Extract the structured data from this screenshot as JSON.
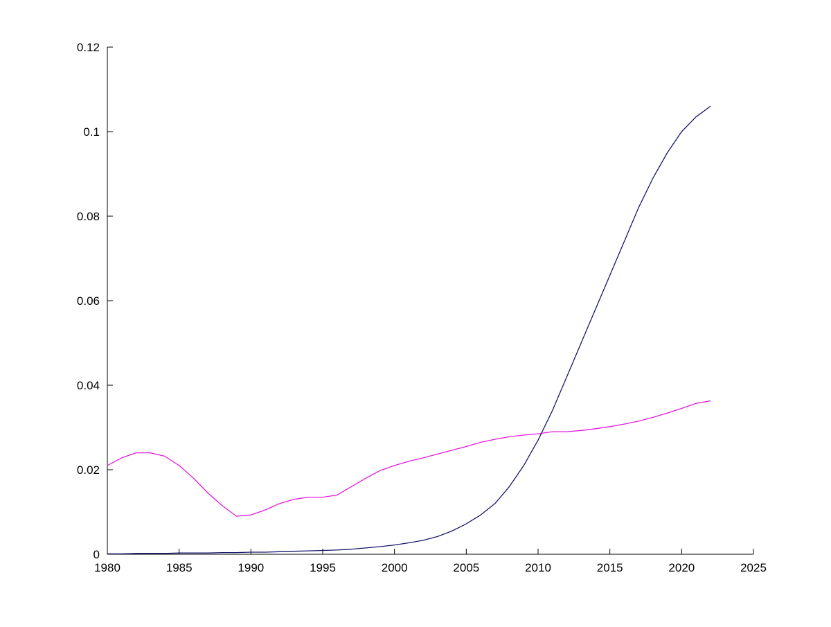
{
  "chart_data": {
    "type": "line",
    "title": "",
    "xlabel": "",
    "ylabel": "",
    "xlim": [
      1980,
      2025
    ],
    "ylim": [
      0,
      0.12
    ],
    "x_ticks": [
      1980,
      1985,
      1990,
      1995,
      2000,
      2005,
      2010,
      2015,
      2020,
      2025
    ],
    "x_tick_labels": [
      "1980",
      "1985",
      "1990",
      "1995",
      "2000",
      "2005",
      "2010",
      "2015",
      "2020",
      "2025"
    ],
    "y_ticks": [
      0,
      0.02,
      0.04,
      0.06,
      0.08,
      0.1,
      0.12
    ],
    "y_tick_labels": [
      "0",
      "0.02",
      "0.04",
      "0.06",
      "0.08",
      "0.1",
      "0.12"
    ],
    "grid": false,
    "legend": "none",
    "axis_color": "#000000",
    "x": [
      1980,
      1981,
      1982,
      1983,
      1984,
      1985,
      1986,
      1987,
      1988,
      1989,
      1990,
      1991,
      1992,
      1993,
      1994,
      1995,
      1996,
      1997,
      1998,
      1999,
      2000,
      2001,
      2002,
      2003,
      2004,
      2005,
      2006,
      2007,
      2008,
      2009,
      2010,
      2011,
      2012,
      2013,
      2014,
      2015,
      2016,
      2017,
      2018,
      2019,
      2020,
      2021,
      2022
    ],
    "series": [
      {
        "name": "magenta-series",
        "color": "#E318DB",
        "values": [
          0.021,
          0.0228,
          0.024,
          0.024,
          0.0232,
          0.021,
          0.018,
          0.0145,
          0.0115,
          0.009,
          0.0093,
          0.0105,
          0.012,
          0.013,
          0.0135,
          0.0135,
          0.014,
          0.016,
          0.018,
          0.0198,
          0.021,
          0.022,
          0.0228,
          0.0237,
          0.0246,
          0.0255,
          0.0265,
          0.0272,
          0.0278,
          0.0282,
          0.0285,
          0.029,
          0.029,
          0.0293,
          0.0297,
          0.0302,
          0.0308,
          0.0315,
          0.0324,
          0.0334,
          0.0345,
          0.0357,
          0.0363
        ]
      },
      {
        "name": "dark-blue-series",
        "color": "#16166B",
        "values": [
          0.0001,
          0.0001,
          0.0002,
          0.0002,
          0.0002,
          0.0003,
          0.0003,
          0.0003,
          0.0004,
          0.0004,
          0.0005,
          0.0005,
          0.0006,
          0.0007,
          0.0008,
          0.0009,
          0.001,
          0.0012,
          0.0015,
          0.0018,
          0.0022,
          0.0027,
          0.0033,
          0.0042,
          0.0055,
          0.0072,
          0.0093,
          0.012,
          0.016,
          0.021,
          0.027,
          0.034,
          0.042,
          0.05,
          0.058,
          0.066,
          0.074,
          0.082,
          0.089,
          0.095,
          0.1,
          0.1035,
          0.106
        ]
      }
    ]
  }
}
